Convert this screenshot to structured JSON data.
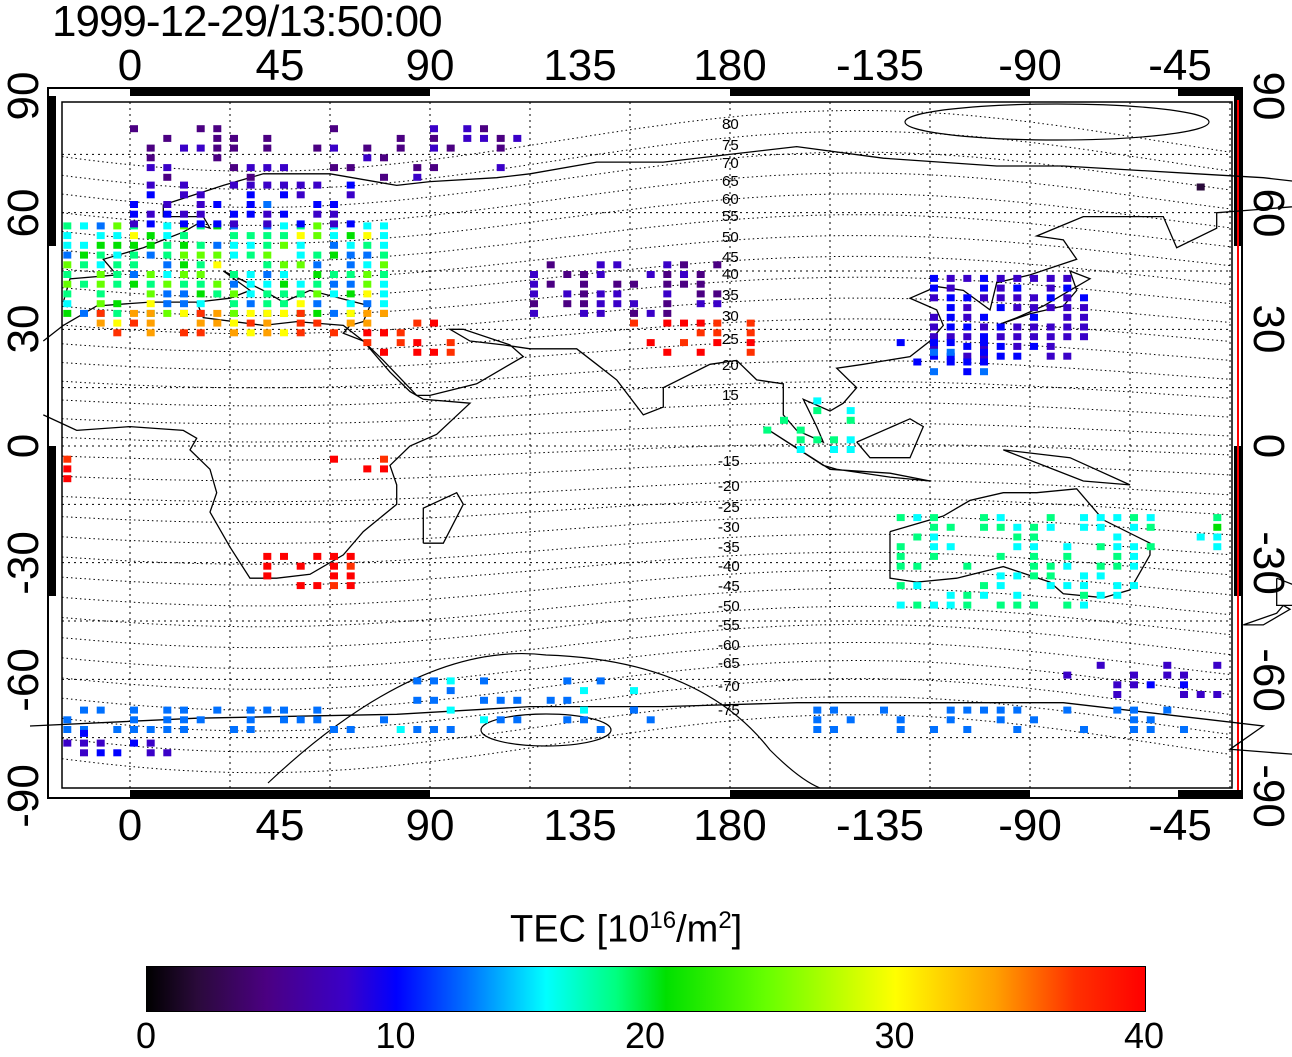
{
  "title": "1999-12-29/13:50:00",
  "axes": {
    "top_lon_ticks": [
      "0",
      "45",
      "90",
      "135",
      "180",
      "-135",
      "-90",
      "-45"
    ],
    "bottom_lon_ticks": [
      "0",
      "45",
      "90",
      "135",
      "180",
      "-135",
      "-90",
      "-45"
    ],
    "left_lat_ticks": [
      "90",
      "60",
      "30",
      "0",
      "-30",
      "-60",
      "-90"
    ],
    "right_lat_ticks": [
      "90",
      "60",
      "30",
      "0",
      "-30",
      "-60",
      "-90"
    ]
  },
  "contour_labels": [
    "80",
    "75",
    "70",
    "65",
    "60",
    "55",
    "50",
    "45",
    "40",
    "35",
    "30",
    "25",
    "20",
    "15",
    "-15",
    "-20",
    "-25",
    "-30",
    "-35",
    "-40",
    "-45",
    "-50",
    "-55",
    "-60",
    "-65",
    "-70",
    "-75"
  ],
  "colorbar": {
    "label_main": "TEC  [10",
    "label_exp1": "16",
    "label_mid": "/m",
    "label_exp2": "2",
    "label_end": "]",
    "ticks": [
      "0",
      "10",
      "20",
      "30",
      "40"
    ],
    "range": [
      0,
      40
    ],
    "colors": [
      "#000000",
      "#4b0082",
      "#0000ff",
      "#00ffff",
      "#00e000",
      "#ffff00",
      "#ff0000"
    ]
  }
}
